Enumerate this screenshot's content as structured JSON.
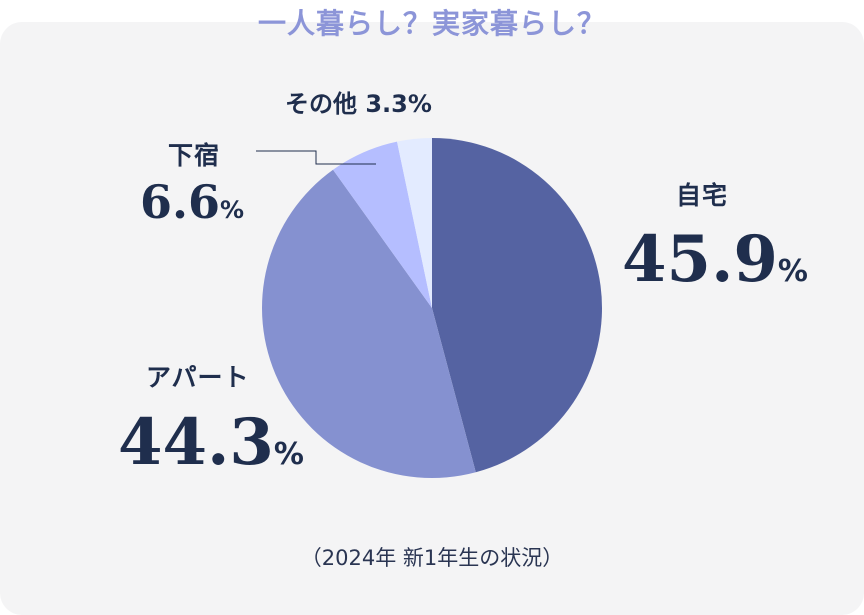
{
  "chart_data": {
    "type": "pie",
    "title": "一人暮らし？実家暮らし？",
    "slices": [
      {
        "label": "自宅",
        "value": 45.9,
        "value_text": "45.9",
        "unit": "%",
        "color": "#5563a2"
      },
      {
        "label": "アパート",
        "value": 44.3,
        "value_text": "44.3",
        "unit": "%",
        "color": "#8591d0"
      },
      {
        "label": "下宿",
        "value": 6.6,
        "value_text": "6.6",
        "unit": "%",
        "color": "#b5beff"
      },
      {
        "label": "その他",
        "value": 3.3,
        "value_text": "3.3",
        "unit": "%",
        "color": "#e3ebff"
      }
    ],
    "note": "（2024年 新1年生の状況）"
  }
}
